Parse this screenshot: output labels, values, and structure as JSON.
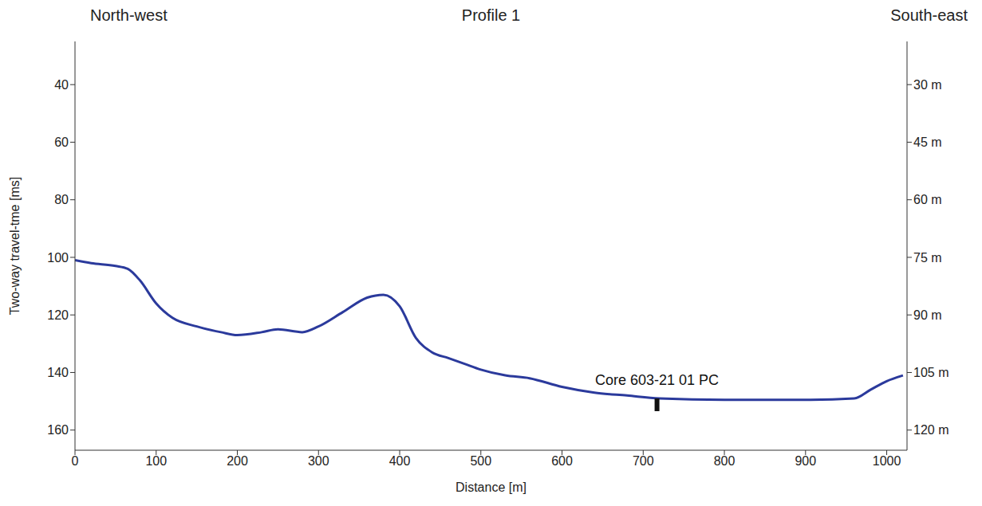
{
  "chart_data": {
    "type": "line",
    "title": "Profile 1",
    "corner_labels": [
      "North-west",
      "South-east"
    ],
    "x_label": "Distance [m]",
    "y_label": "Two-way travel-tme [ms]",
    "x": [
      0,
      20,
      50,
      65,
      80,
      100,
      120,
      150,
      180,
      200,
      230,
      250,
      280,
      300,
      330,
      360,
      380,
      400,
      420,
      440,
      460,
      480,
      500,
      530,
      560,
      600,
      640,
      680,
      720,
      800,
      900,
      960,
      980,
      1000,
      1020
    ],
    "values": [
      101,
      102,
      103,
      104,
      108,
      116,
      121,
      124,
      126,
      127,
      126,
      125,
      126,
      124,
      119,
      114,
      113,
      117,
      128,
      133,
      135,
      137,
      139,
      141,
      142,
      145,
      147,
      148,
      149,
      149.5,
      149.5,
      149,
      146,
      143,
      141
    ],
    "color": "#2b3a9c",
    "xlim": [
      0,
      1025
    ],
    "xticks": [
      0,
      100,
      200,
      300,
      400,
      500,
      600,
      700,
      800,
      900,
      1000
    ],
    "ylim": [
      25,
      167
    ],
    "yticks": [
      40,
      60,
      80,
      100,
      120,
      140,
      160
    ],
    "y2lim": [
      18.75,
      125.25
    ],
    "y2ticks": [
      {
        "value": 30,
        "label": "30 m"
      },
      {
        "value": 45,
        "label": "45 m"
      },
      {
        "value": 60,
        "label": "60 m"
      },
      {
        "value": 75,
        "label": "75 m"
      },
      {
        "value": 90,
        "label": "90 m"
      },
      {
        "value": 105,
        "label": "105 m"
      },
      {
        "value": 120,
        "label": "120 m"
      }
    ],
    "annotations": [
      {
        "text": "Core 603-21 01 PC",
        "x": 717,
        "y": 149
      }
    ],
    "grid": false
  }
}
